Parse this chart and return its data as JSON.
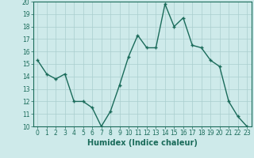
{
  "x": [
    0,
    1,
    2,
    3,
    4,
    5,
    6,
    7,
    8,
    9,
    10,
    11,
    12,
    13,
    14,
    15,
    16,
    17,
    18,
    19,
    20,
    21,
    22,
    23
  ],
  "y": [
    15.3,
    14.2,
    13.8,
    14.2,
    12.0,
    12.0,
    11.5,
    10.0,
    11.2,
    13.3,
    15.6,
    17.3,
    16.3,
    16.3,
    19.8,
    18.0,
    18.7,
    16.5,
    16.3,
    15.3,
    14.8,
    12.0,
    10.8,
    10.0
  ],
  "line_color": "#1a6b5a",
  "marker_color": "#1a6b5a",
  "bg_color": "#ceeaea",
  "grid_color": "#aacece",
  "xlabel": "Humidex (Indice chaleur)",
  "ylim": [
    10,
    20
  ],
  "xlim": [
    -0.5,
    23.5
  ],
  "yticks": [
    10,
    11,
    12,
    13,
    14,
    15,
    16,
    17,
    18,
    19,
    20
  ],
  "xticks": [
    0,
    1,
    2,
    3,
    4,
    5,
    6,
    7,
    8,
    9,
    10,
    11,
    12,
    13,
    14,
    15,
    16,
    17,
    18,
    19,
    20,
    21,
    22,
    23
  ],
  "tick_fontsize": 5.5,
  "xlabel_fontsize": 7,
  "marker_size": 2.5,
  "line_width": 1.0
}
